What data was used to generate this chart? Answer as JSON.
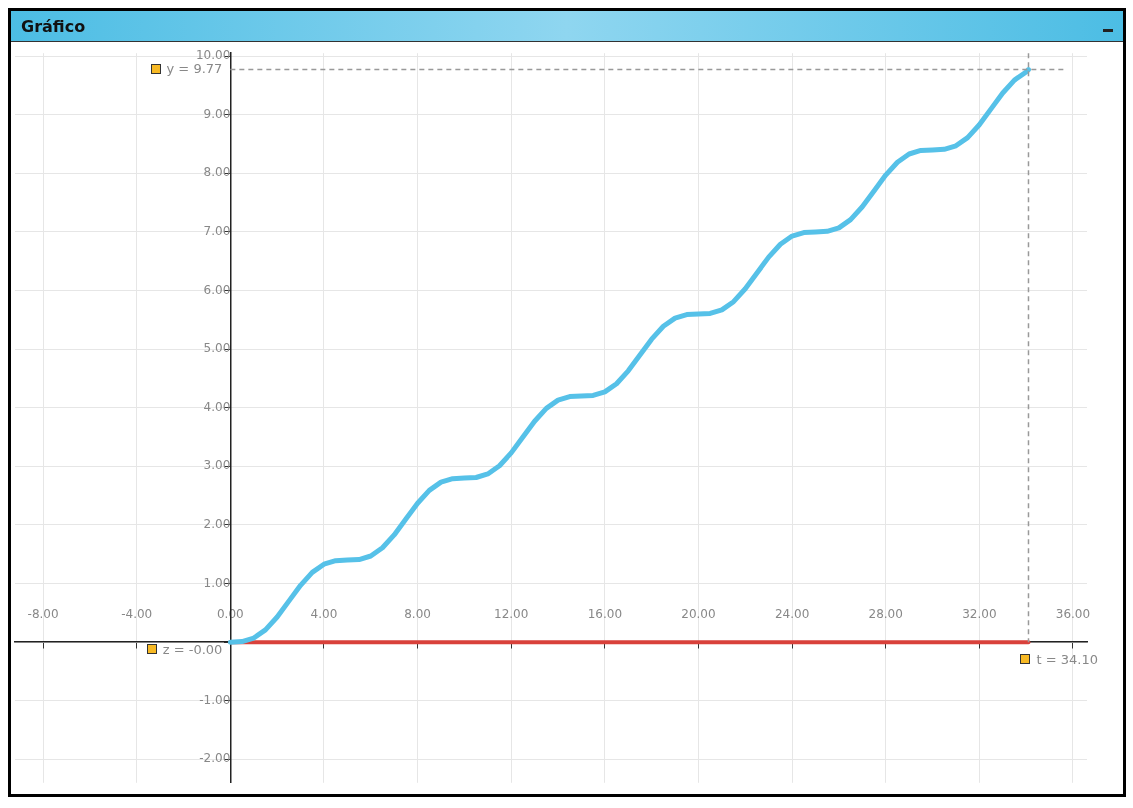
{
  "chart_data": {
    "type": "line",
    "title": "Gráfico",
    "xlim": [
      -9.2,
      36.6
    ],
    "ylim": [
      -2.4,
      10.05
    ],
    "xticks": [
      {
        "value": -8,
        "label": "-8.00"
      },
      {
        "value": -4,
        "label": "-4.00"
      },
      {
        "value": 0,
        "label": "0.00"
      },
      {
        "value": 4,
        "label": "4.00"
      },
      {
        "value": 8,
        "label": "8.00"
      },
      {
        "value": 12,
        "label": "12.00"
      },
      {
        "value": 16,
        "label": "16.00"
      },
      {
        "value": 20,
        "label": "20.00"
      },
      {
        "value": 24,
        "label": "24.00"
      },
      {
        "value": 28,
        "label": "28.00"
      },
      {
        "value": 32,
        "label": "32.00"
      },
      {
        "value": 36,
        "label": "36.00"
      }
    ],
    "yticks": [
      {
        "value": -2,
        "label": "-2.00"
      },
      {
        "value": -1,
        "label": "-1.00"
      },
      {
        "value": 0,
        "label": null
      },
      {
        "value": 1,
        "label": "1.00"
      },
      {
        "value": 2,
        "label": "2.00"
      },
      {
        "value": 3,
        "label": "3.00"
      },
      {
        "value": 4,
        "label": "4.00"
      },
      {
        "value": 5,
        "label": "5.00"
      },
      {
        "value": 6,
        "label": "6.00"
      },
      {
        "value": 7,
        "label": "7.00"
      },
      {
        "value": 8,
        "label": "8.00"
      },
      {
        "value": 9,
        "label": "9.00"
      },
      {
        "value": 10,
        "label": "10.00"
      }
    ],
    "grid": true,
    "legend": false,
    "marker": "none",
    "line_style": "solid",
    "series": [
      {
        "color": "#56c1e8",
        "x": [
          0,
          0.5,
          1,
          1.5,
          2,
          2.5,
          3,
          3.5,
          4,
          4.5,
          5,
          5.5,
          6,
          6.5,
          7,
          7.5,
          8,
          8.5,
          9,
          9.5,
          10,
          10.5,
          11,
          11.5,
          12,
          12.5,
          13,
          13.5,
          14,
          14.5,
          15,
          15.5,
          16,
          16.5,
          17,
          17.5,
          18,
          18.5,
          19,
          19.5,
          20,
          20.5,
          21,
          21.5,
          22,
          22.5,
          23,
          23.5,
          24,
          24.5,
          25,
          25.5,
          26,
          26.5,
          27,
          27.5,
          28,
          28.5,
          29,
          29.5,
          30,
          30.5,
          31,
          31.5,
          32,
          32.5,
          33,
          33.5,
          34,
          34.1
        ],
        "values": [
          0,
          0.01,
          0.07,
          0.21,
          0.43,
          0.7,
          0.97,
          1.19,
          1.33,
          1.39,
          1.4,
          1.41,
          1.47,
          1.61,
          1.83,
          2.1,
          2.37,
          2.59,
          2.73,
          2.79,
          2.8,
          2.81,
          2.87,
          3.01,
          3.23,
          3.5,
          3.77,
          3.99,
          4.13,
          4.19,
          4.2,
          4.21,
          4.27,
          4.41,
          4.63,
          4.9,
          5.17,
          5.39,
          5.53,
          5.59,
          5.6,
          5.61,
          5.67,
          5.81,
          6.03,
          6.3,
          6.57,
          6.79,
          6.93,
          6.99,
          7,
          7.01,
          7.07,
          7.21,
          7.43,
          7.7,
          7.97,
          8.19,
          8.33,
          8.39,
          8.4,
          8.41,
          8.47,
          8.61,
          8.83,
          9.1,
          9.37,
          9.59,
          9.73,
          9.77
        ]
      },
      {
        "color": "#d9413b",
        "x": [
          0,
          34.1
        ],
        "values": [
          0,
          0
        ]
      }
    ],
    "ref_lines": [
      {
        "axis": "y",
        "value": 9.77,
        "color": "#999999",
        "line_style": "dashed"
      },
      {
        "axis": "x",
        "value": 34.1,
        "color": "#999999",
        "line_style": "dashed"
      }
    ],
    "annotations": [
      "y = 9.77",
      "z = -0.00",
      "t = 34.10"
    ]
  }
}
